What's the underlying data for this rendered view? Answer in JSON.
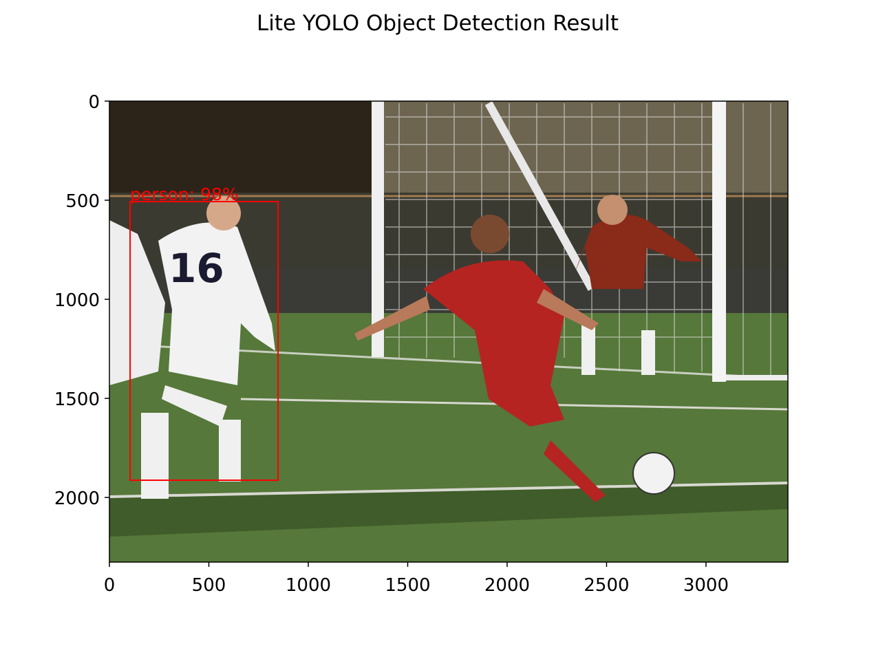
{
  "chart_data": {
    "type": "image",
    "title": "Lite YOLO Object Detection Result",
    "xlim": [
      0,
      3412
    ],
    "ylim": [
      2326,
      0
    ],
    "xticks": [
      0,
      500,
      1000,
      1500,
      2000,
      2500,
      3000
    ],
    "yticks": [
      0,
      500,
      1000,
      1500,
      2000
    ],
    "detections": [
      {
        "label": "person: 98%",
        "color": "#ff0000",
        "x1": 104,
        "y1": 507,
        "x2": 848,
        "y2": 1913
      }
    ]
  }
}
